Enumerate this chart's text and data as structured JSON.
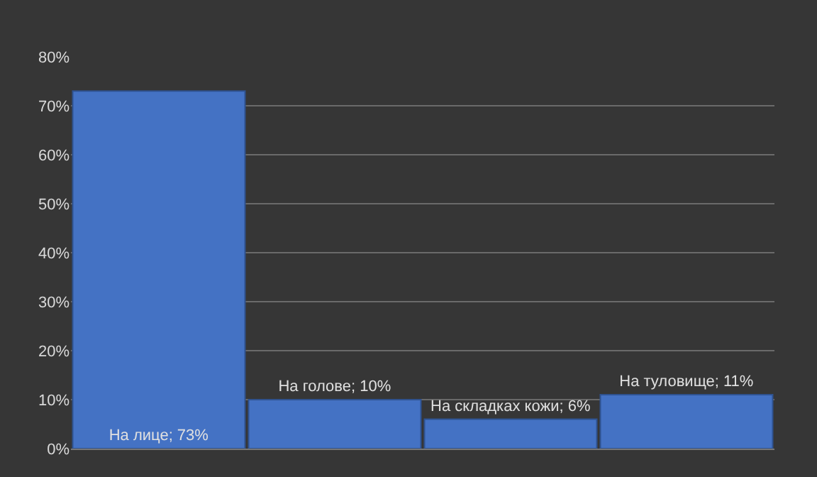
{
  "chart_data": {
    "type": "bar",
    "categories": [
      null,
      null,
      null,
      null
    ],
    "values": [
      73,
      10,
      6,
      11
    ],
    "value_labels": [
      "На лице; 73%",
      "На голове; 10%",
      "На складках кожи; 6%",
      "На туловище; 11%"
    ],
    "color": "#4472c4",
    "ylim": [
      0,
      80
    ],
    "yticks": [
      {
        "value": 0,
        "label": "0%"
      },
      {
        "value": 10,
        "label": "10%"
      },
      {
        "value": 20,
        "label": "20%"
      },
      {
        "value": 30,
        "label": "30%"
      },
      {
        "value": 40,
        "label": "40%"
      },
      {
        "value": 50,
        "label": "50%"
      },
      {
        "value": 60,
        "label": "60%"
      },
      {
        "value": 70,
        "label": "70%"
      },
      {
        "value": 80,
        "label": "80%"
      }
    ],
    "grid": true,
    "tick_labels": "y"
  }
}
